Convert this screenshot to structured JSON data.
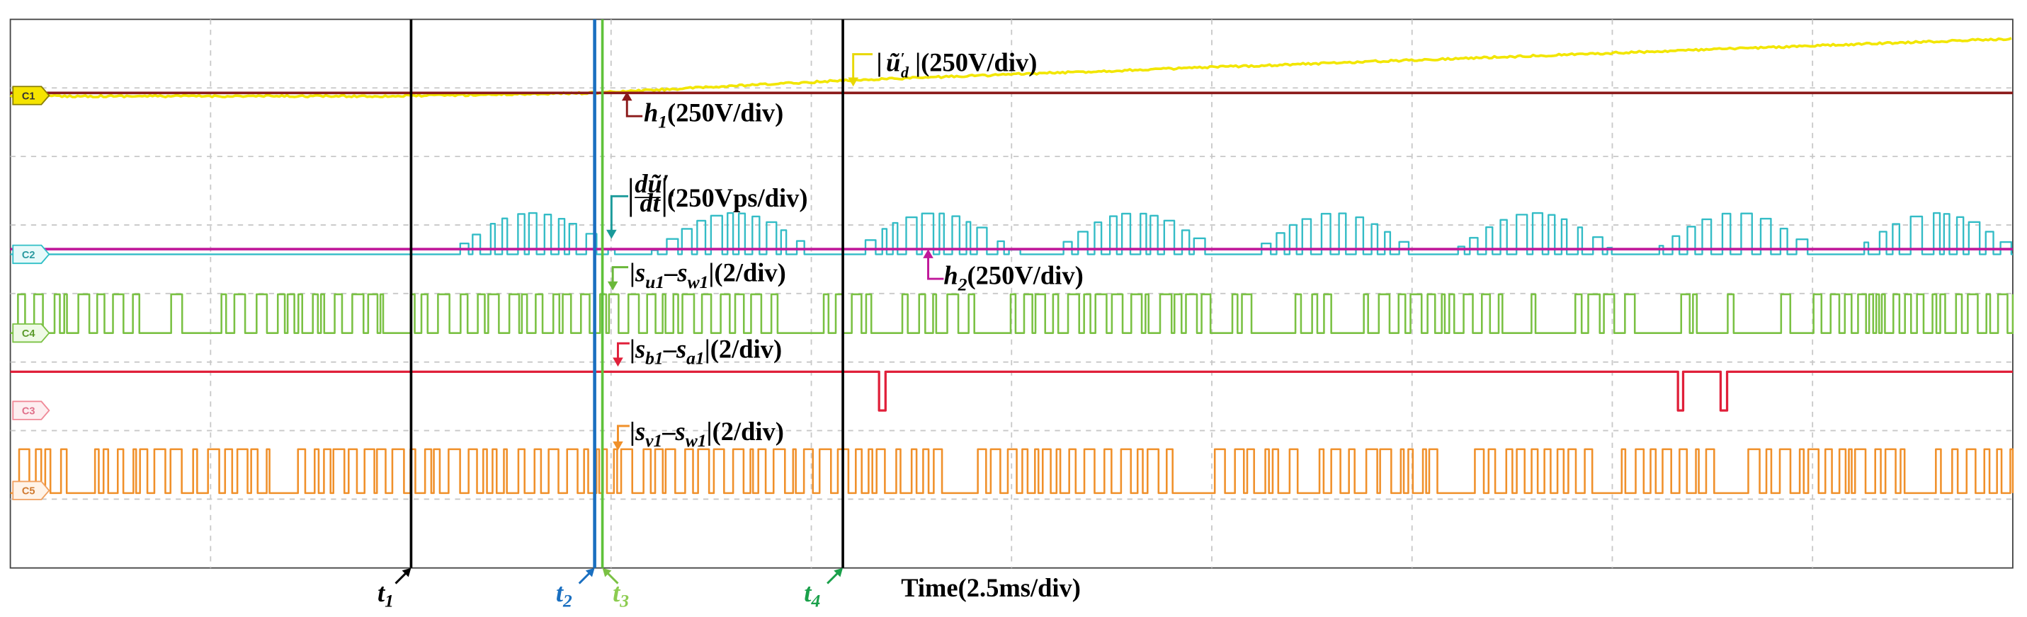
{
  "channels": [
    "C1",
    "C2",
    "C4",
    "C3",
    "C5"
  ],
  "annotations": {
    "ud": [
      "|",
      "ũ",
      "′",
      "d",
      " |(250V/div)"
    ],
    "h1": [
      "h",
      "1",
      "(250V/div)"
    ],
    "dudt": [
      "dũ′",
      "d",
      "dt",
      "(250Vps/div)"
    ],
    "suw": [
      "|",
      "s",
      "u1",
      "–",
      "s",
      "w1",
      "|(2/div)"
    ],
    "h2": [
      "h",
      "2",
      "(250V/div)"
    ],
    "sba": [
      "|",
      "s",
      "b1",
      "–",
      "s",
      "a1",
      "|(2/div)"
    ],
    "svw": [
      "|",
      "s",
      "v1",
      "–",
      "s",
      "w1",
      "|(2/div)"
    ]
  },
  "markers": [
    [
      "t",
      "1"
    ],
    [
      "t",
      "2"
    ],
    [
      "t",
      "3"
    ],
    [
      "t",
      "4"
    ]
  ],
  "time_label": "Time(2.5ms/div)"
}
